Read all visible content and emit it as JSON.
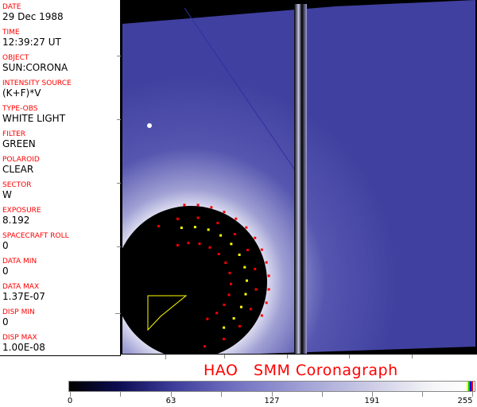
{
  "header_fields": [
    {
      "label": "DATE",
      "value": "29 Dec 1988"
    },
    {
      "label": "TIME",
      "value": "12:39:27 UT"
    },
    {
      "label": "OBJECT",
      "value": "SUN:CORONA"
    },
    {
      "label": "INTENSITY SOURCE",
      "value": "(K+F)*V"
    },
    {
      "label": "TYPE-OBS",
      "value": "WHITE LIGHT"
    },
    {
      "label": "FILTER",
      "value": "GREEN"
    },
    {
      "label": "POLAROID",
      "value": "CLEAR"
    },
    {
      "label": "SECTOR",
      "value": "W"
    },
    {
      "label": "EXPOSURE",
      "value": "8.192"
    },
    {
      "label": "SPACECRAFT ROLL",
      "value": "0"
    },
    {
      "label": "DATA MIN",
      "value": "0"
    },
    {
      "label": "DATA MAX",
      "value": "1.37E-07"
    },
    {
      "label": "DISP MIN",
      "value": "0"
    },
    {
      "label": "DISP MAX",
      "value": "1.00E-08"
    }
  ],
  "title": "HAO   SMM Coronagraph",
  "colorbar": {
    "ticks": [
      "0",
      "63",
      "127",
      "191",
      "255"
    ],
    "min": 0,
    "max": 255,
    "colors": {
      "low": "#000000",
      "mid": "#6e6ec0",
      "high": "#ffffff",
      "overlay": [
        "#ffff00",
        "#00c000",
        "#0000ff",
        "#ff0000"
      ]
    }
  },
  "colors": {
    "label": "#ff0000",
    "corona": "#4a4aa8",
    "occulter_markers_red": "#ff0000",
    "occulter_markers_yellow": "#ffff00"
  }
}
